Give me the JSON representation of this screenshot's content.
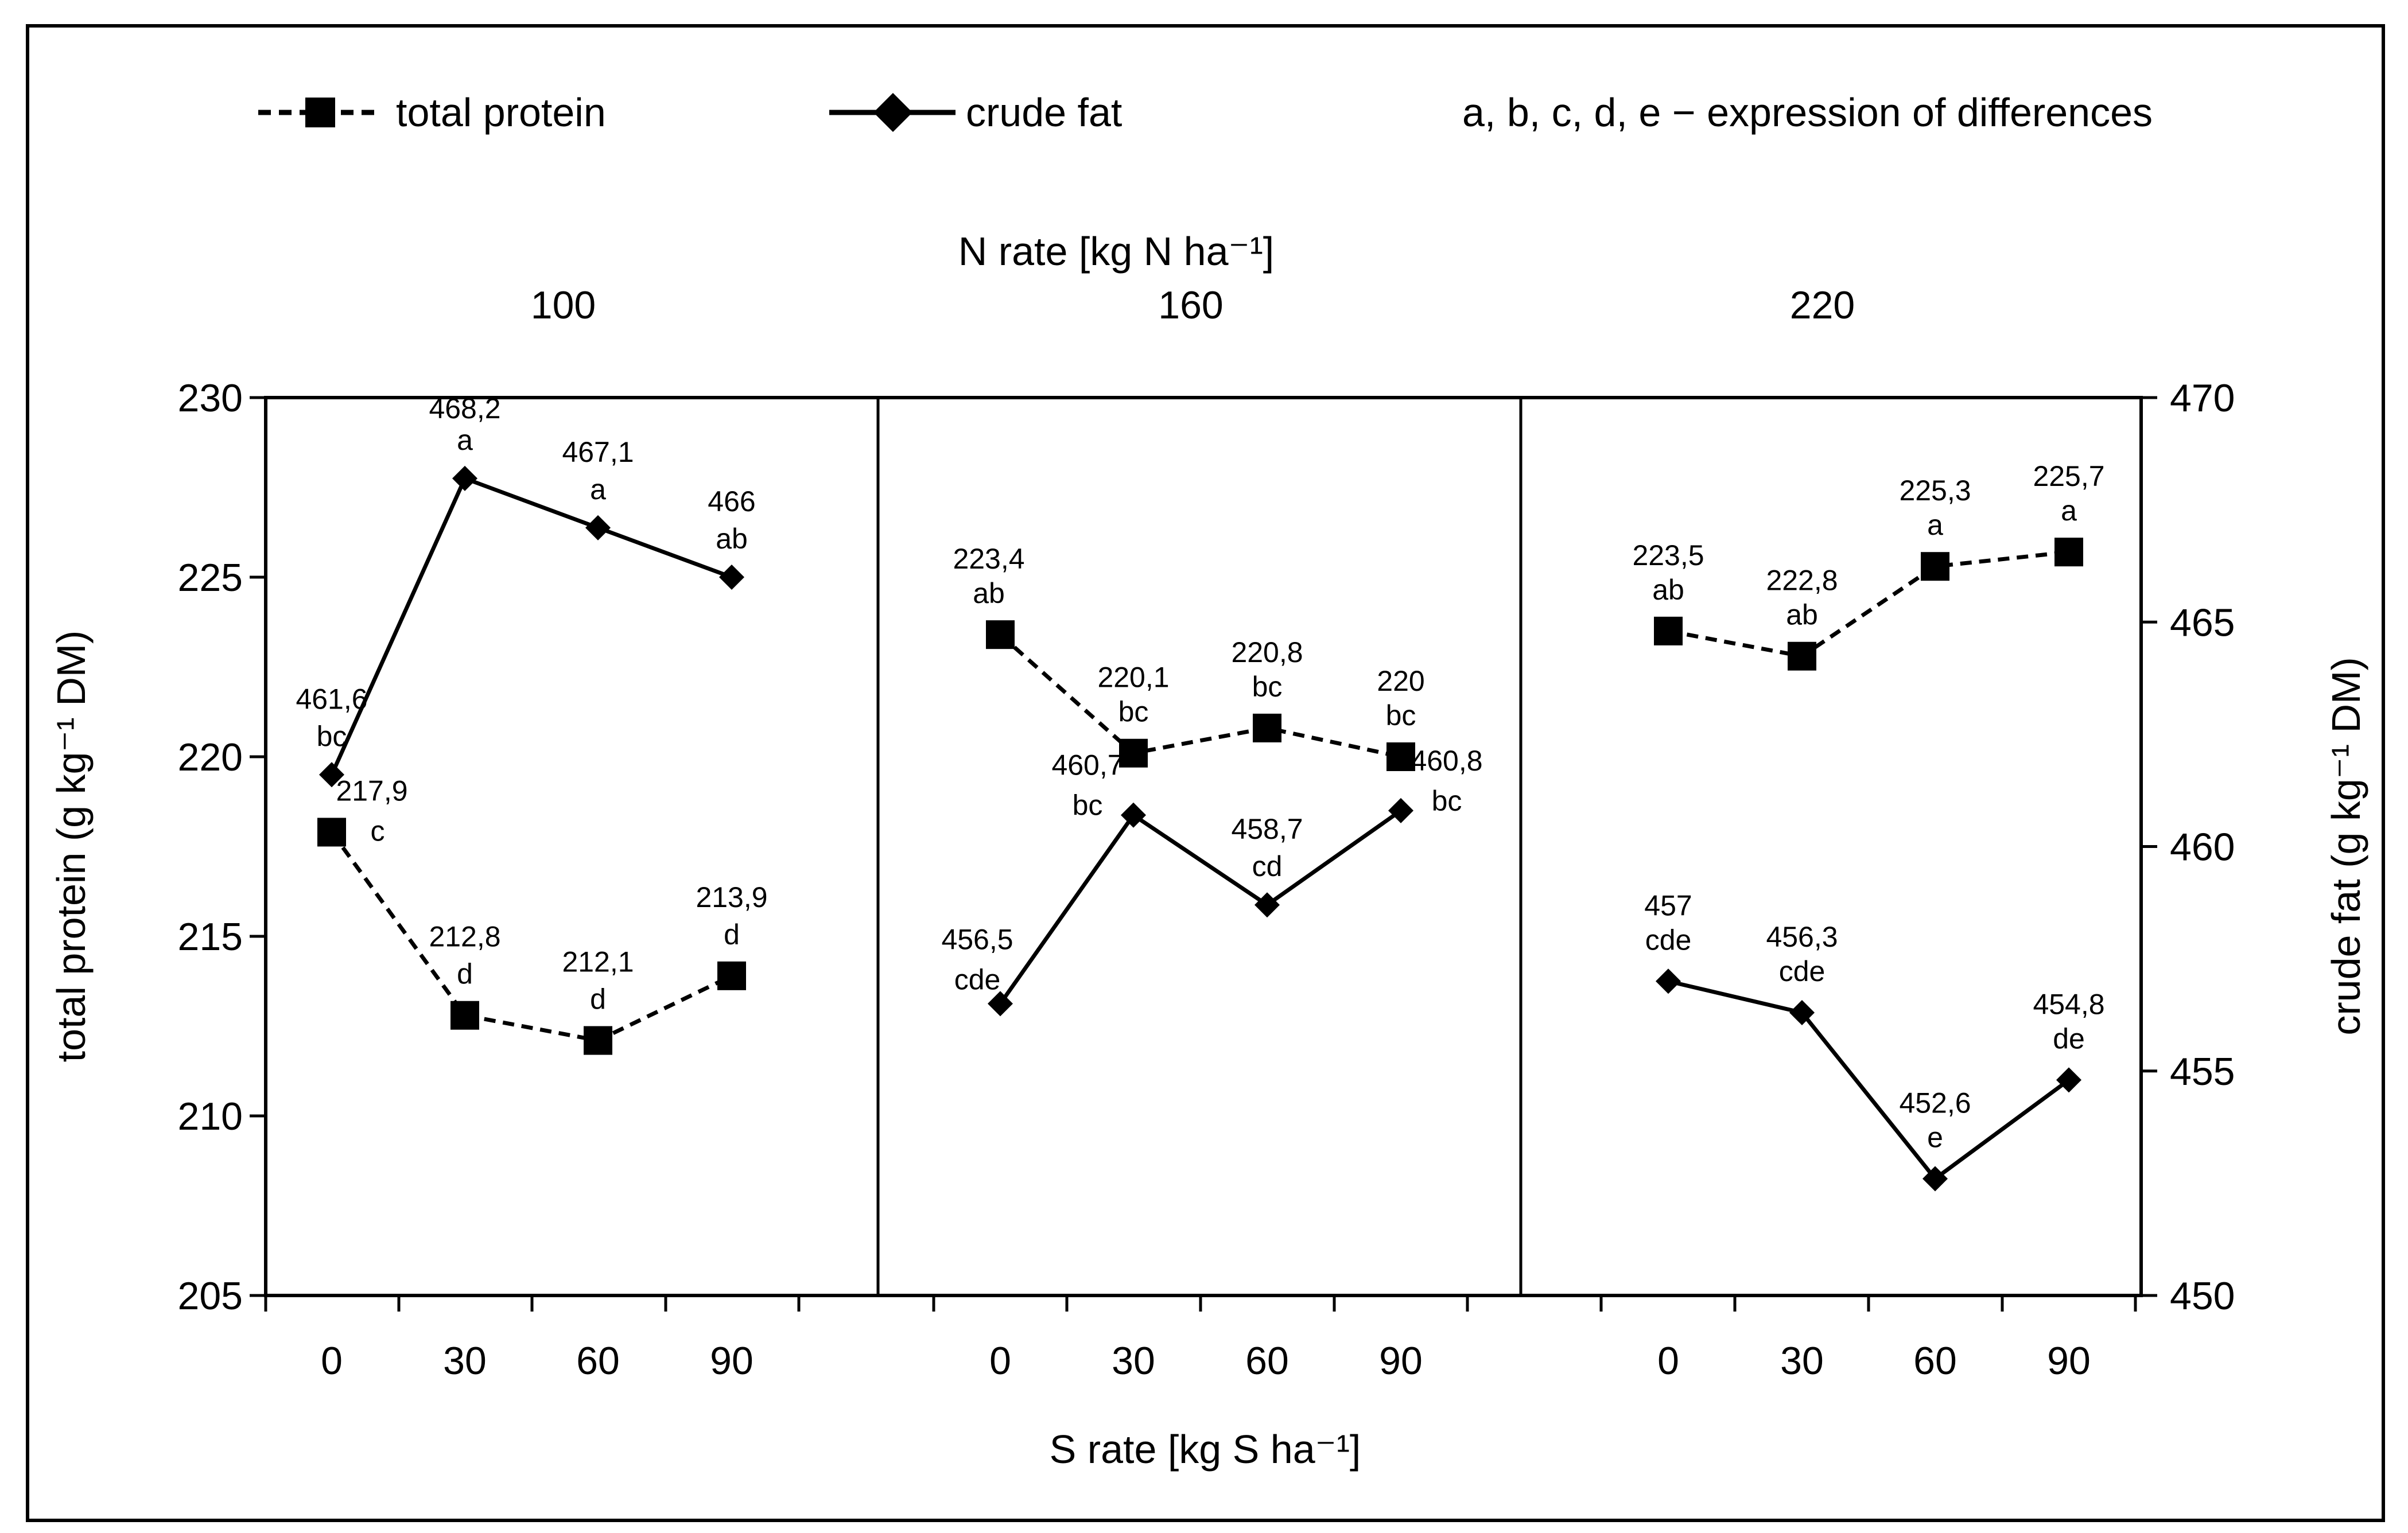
{
  "chart_data": {
    "type": "line",
    "title": "",
    "legend": {
      "placement": "top",
      "items": [
        {
          "name": "total protein",
          "line": "dashed",
          "marker": "square"
        },
        {
          "name": "crude fat",
          "line": "solid",
          "marker": "diamond"
        }
      ],
      "note": "a, b, c, d, e − expression of differences"
    },
    "top_axis_title": "N rate [kg N ha⁻¹]",
    "xlabel": "S rate [kg S ha⁻¹]",
    "ylabel_left": "total protein (g kg⁻¹ DM)",
    "ylabel_right": "crude fat (g kg⁻¹ DM)",
    "ylim_left": [
      205,
      230
    ],
    "yticks_left": [
      "205",
      "210",
      "215",
      "220",
      "225",
      "230"
    ],
    "ylim_right": [
      450,
      470
    ],
    "yticks_right": [
      "450",
      "455",
      "460",
      "465",
      "470"
    ],
    "panels": [
      {
        "n_rate": "100",
        "categories": [
          "0",
          "30",
          "60",
          "90"
        ],
        "series": [
          {
            "name": "total protein",
            "axis": "left",
            "values": [
              217.9,
              212.8,
              212.1,
              213.9
            ],
            "labels": [
              "217,9",
              "212,8",
              "212,1",
              "213,9"
            ],
            "groups": [
              "c",
              "d",
              "d",
              "d"
            ]
          },
          {
            "name": "crude fat",
            "axis": "right",
            "values": [
              461.6,
              468.2,
              467.1,
              466.0
            ],
            "labels": [
              "461,6",
              "468,2",
              "467,1",
              "466"
            ],
            "groups": [
              "bc",
              "a",
              "a",
              "ab"
            ]
          }
        ]
      },
      {
        "n_rate": "160",
        "categories": [
          "0",
          "30",
          "60",
          "90"
        ],
        "series": [
          {
            "name": "total protein",
            "axis": "left",
            "values": [
              223.4,
              220.1,
              220.8,
              220.0
            ],
            "labels": [
              "223,4",
              "220,1",
              "220,8",
              "220"
            ],
            "groups": [
              "ab",
              "bc",
              "bc",
              "bc"
            ]
          },
          {
            "name": "crude fat",
            "axis": "right",
            "values": [
              456.5,
              460.7,
              458.7,
              460.8
            ],
            "labels": [
              "456,5",
              "460,7",
              "458,7",
              "460,8"
            ],
            "groups": [
              "cde",
              "bc",
              "cd",
              "bc"
            ]
          }
        ]
      },
      {
        "n_rate": "220",
        "categories": [
          "0",
          "30",
          "60",
          "90"
        ],
        "series": [
          {
            "name": "total protein",
            "axis": "left",
            "values": [
              223.5,
              222.8,
              225.3,
              225.7
            ],
            "labels": [
              "223,5",
              "222,8",
              "225,3",
              "225,7"
            ],
            "groups": [
              "ab",
              "ab",
              "a",
              "a"
            ]
          },
          {
            "name": "crude fat",
            "axis": "right",
            "values": [
              457.0,
              456.3,
              452.6,
              454.8
            ],
            "labels": [
              "457",
              "456,3",
              "452,6",
              "454,8"
            ],
            "groups": [
              "cde",
              "cde",
              "e",
              "de"
            ]
          }
        ]
      }
    ]
  }
}
